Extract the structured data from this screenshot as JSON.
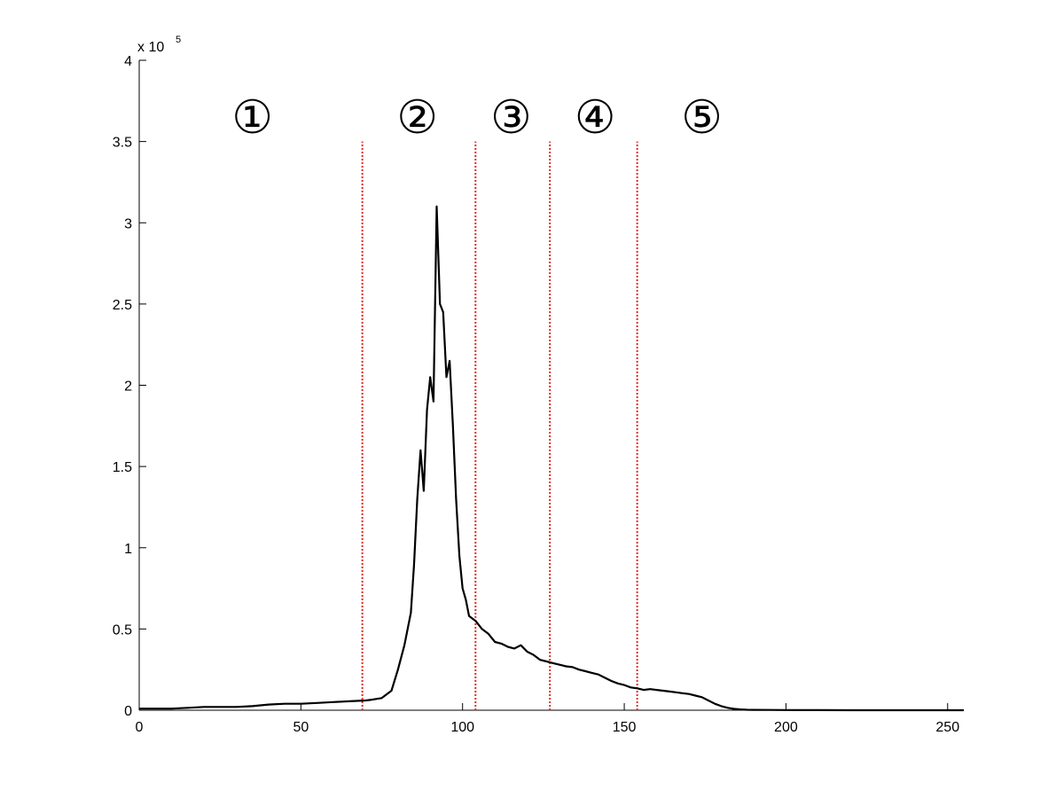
{
  "chart_data": {
    "type": "line",
    "title": "",
    "xlabel": "",
    "ylabel": "",
    "xlim": [
      0,
      255
    ],
    "ylim": [
      0,
      400000
    ],
    "y_exponent_label": {
      "base": "x 10",
      "power": "5"
    },
    "x_ticks": [
      {
        "value": 0,
        "label": "0"
      },
      {
        "value": 50,
        "label": "50"
      },
      {
        "value": 100,
        "label": "100"
      },
      {
        "value": 150,
        "label": "150"
      },
      {
        "value": 200,
        "label": "200"
      },
      {
        "value": 250,
        "label": "250"
      }
    ],
    "y_ticks": [
      {
        "value": 0,
        "label": "0"
      },
      {
        "value": 50000,
        "label": "0.5"
      },
      {
        "value": 100000,
        "label": "1"
      },
      {
        "value": 150000,
        "label": "1.5"
      },
      {
        "value": 200000,
        "label": "2"
      },
      {
        "value": 250000,
        "label": "2.5"
      },
      {
        "value": 300000,
        "label": "3"
      },
      {
        "value": 350000,
        "label": "3.5"
      },
      {
        "value": 400000,
        "label": "4"
      }
    ],
    "grid": false,
    "line_color": "#000000",
    "divider_color": "#e0302c",
    "dividers": [
      {
        "x": 69,
        "y_top": 350000
      },
      {
        "x": 104,
        "y_top": 350000
      },
      {
        "x": 127,
        "y_top": 350000
      },
      {
        "x": 154,
        "y_top": 350000
      }
    ],
    "regions": [
      {
        "label": "①",
        "x": 35,
        "y": 365000
      },
      {
        "label": "②",
        "x": 86,
        "y": 365000
      },
      {
        "label": "③",
        "x": 115,
        "y": 365000
      },
      {
        "label": "④",
        "x": 141,
        "y": 365000
      },
      {
        "label": "⑤",
        "x": 174,
        "y": 365000
      }
    ],
    "series": [
      {
        "x": [
          0,
          5,
          10,
          15,
          20,
          25,
          30,
          35,
          40,
          45,
          50,
          55,
          60,
          65,
          70,
          72,
          75,
          78,
          80,
          82,
          84,
          85,
          86,
          87,
          88,
          89,
          90,
          91,
          92,
          93,
          94,
          95,
          96,
          97,
          98,
          99,
          100,
          101,
          102,
          104,
          106,
          108,
          110,
          112,
          114,
          116,
          118,
          120,
          122,
          124,
          126,
          128,
          130,
          132,
          134,
          136,
          138,
          140,
          142,
          144,
          146,
          148,
          150,
          152,
          154,
          156,
          158,
          160,
          162,
          164,
          166,
          168,
          170,
          172,
          174,
          176,
          178,
          180,
          182,
          184,
          186,
          188,
          190,
          195,
          200,
          205,
          210,
          220,
          230,
          240,
          255
        ],
        "y": [
          1000,
          1000,
          1000,
          1500,
          2000,
          2000,
          2000,
          2500,
          3500,
          4000,
          4000,
          4500,
          5000,
          5500,
          6000,
          6500,
          7500,
          12000,
          25000,
          40000,
          60000,
          90000,
          130000,
          160000,
          135000,
          185000,
          205000,
          190000,
          310000,
          250000,
          245000,
          205000,
          215000,
          175000,
          130000,
          95000,
          75000,
          68000,
          58000,
          55000,
          50000,
          47000,
          42000,
          41000,
          39000,
          38000,
          40000,
          36000,
          34000,
          31000,
          30000,
          29000,
          28000,
          27000,
          26500,
          25000,
          24000,
          23000,
          22000,
          20000,
          18000,
          16500,
          15500,
          14000,
          13500,
          12500,
          13000,
          12500,
          12000,
          11500,
          11000,
          10500,
          10000,
          9000,
          8000,
          6000,
          4000,
          2500,
          1500,
          800,
          500,
          300,
          200,
          150,
          100,
          60,
          40,
          20,
          10,
          0,
          0
        ]
      }
    ]
  }
}
